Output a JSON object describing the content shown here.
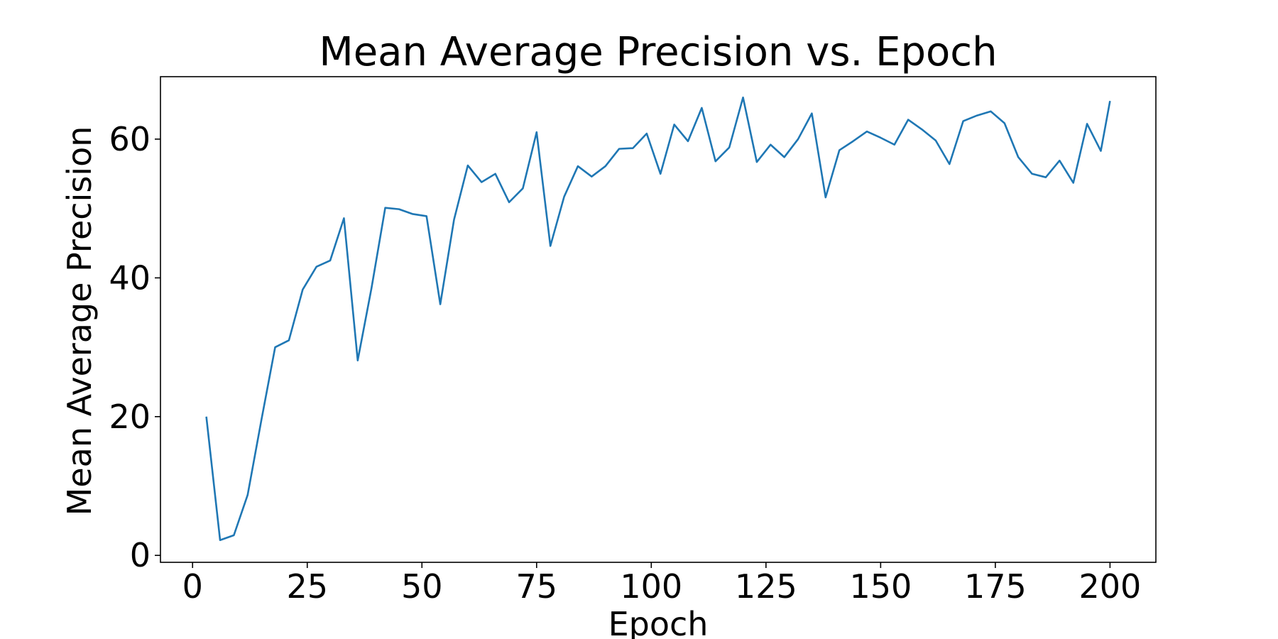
{
  "chart_data": {
    "type": "line",
    "title": "Mean Average Precision vs. Epoch",
    "xlabel": "Epoch",
    "ylabel": "Mean Average Precision",
    "xlim": [
      -7,
      210
    ],
    "ylim": [
      -1,
      69
    ],
    "xticks": [
      0,
      25,
      50,
      75,
      100,
      125,
      150,
      175,
      200
    ],
    "yticks": [
      0,
      20,
      40,
      60
    ],
    "grid": false,
    "legend": "none",
    "series": [
      {
        "color": "#1f77b4",
        "x": [
          3,
          6,
          9,
          12,
          15,
          18,
          21,
          24,
          27,
          30,
          33,
          36,
          39,
          42,
          45,
          48,
          51,
          54,
          57,
          60,
          63,
          66,
          69,
          72,
          75,
          78,
          81,
          84,
          87,
          90,
          93,
          96,
          99,
          102,
          105,
          108,
          111,
          114,
          117,
          120,
          123,
          126,
          129,
          132,
          135,
          138,
          141,
          144,
          147,
          150,
          153,
          156,
          159,
          162,
          165,
          168,
          171,
          174,
          177,
          180,
          183,
          186,
          189,
          192,
          195,
          198,
          200
        ],
        "y": [
          20.0,
          2.2,
          2.9,
          8.7,
          19.5,
          30.0,
          31.0,
          38.3,
          41.6,
          42.5,
          48.6,
          28.1,
          38.5,
          50.1,
          49.9,
          49.2,
          48.9,
          36.2,
          48.4,
          56.2,
          53.8,
          55.0,
          50.9,
          52.9,
          61.0,
          44.6,
          51.7,
          56.1,
          54.6,
          56.1,
          58.6,
          58.7,
          60.8,
          55.0,
          62.1,
          59.7,
          64.5,
          56.8,
          58.8,
          66.0,
          56.7,
          59.2,
          57.4,
          60.0,
          63.7,
          51.6,
          58.4,
          59.7,
          61.1,
          60.2,
          59.2,
          62.8,
          61.4,
          59.8,
          56.4,
          62.6,
          63.4,
          64.0,
          62.3,
          57.4,
          55.0,
          54.5,
          56.9,
          53.7,
          62.2,
          58.3,
          65.5
        ]
      }
    ]
  }
}
